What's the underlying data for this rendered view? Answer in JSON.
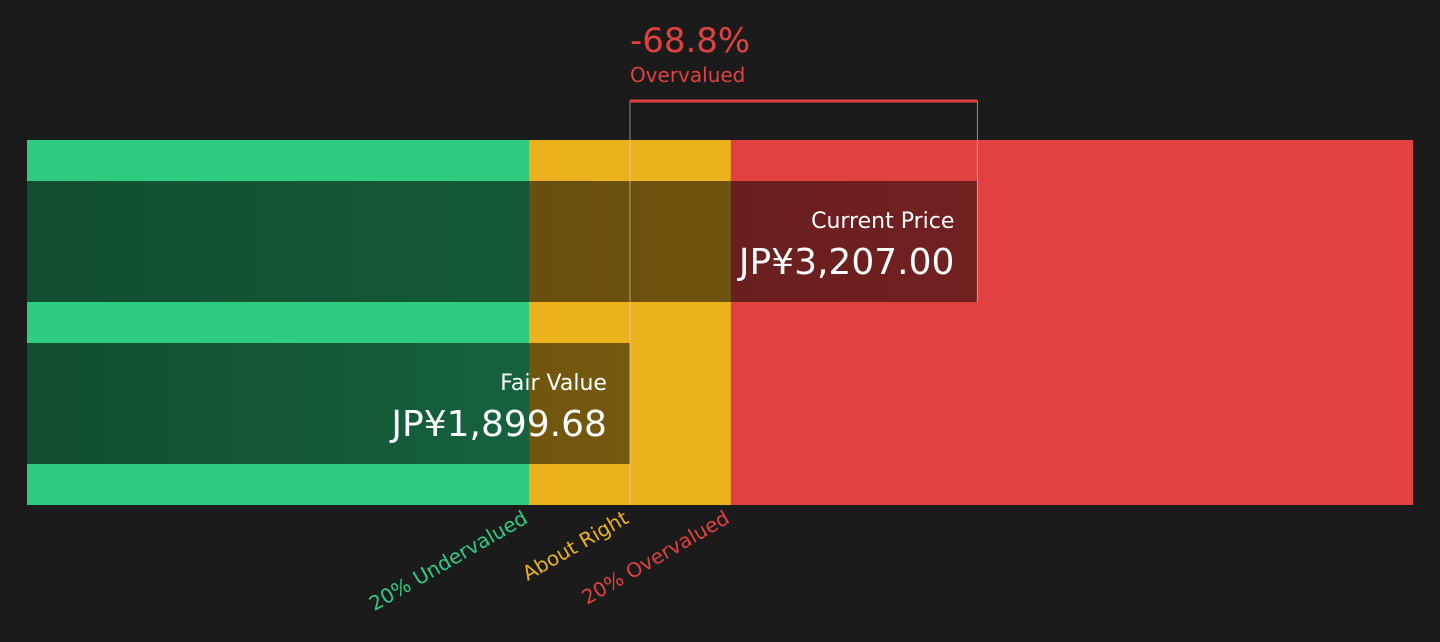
{
  "chart_data": {
    "type": "valuation",
    "xlim": [
      -369,
      4846
    ],
    "bars": [
      {
        "name": "Current Price",
        "value": 3207.0,
        "value_label": "JP¥3,207.00"
      },
      {
        "name": "Fair Value",
        "value": 1899.68,
        "value_label": "JP¥1,899.68"
      }
    ],
    "zones": [
      {
        "name": "20% Undervalued",
        "color": "#2ecc80",
        "end": 1519.74
      },
      {
        "name": "About Right",
        "color": "#ecb21e",
        "end": 2279.62
      },
      {
        "name": "20% Overvalued",
        "color": "#e24141",
        "end": 4846
      }
    ],
    "difference": {
      "value": -68.8,
      "label": "-68.8%"
    },
    "difference_caption": "Overvalued"
  }
}
